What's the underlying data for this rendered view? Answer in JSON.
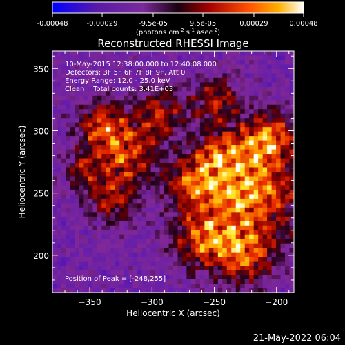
{
  "colorbar": {
    "tick_labels": [
      "-0.00048",
      "-0.00029",
      "-9.5e-05",
      "9.5e-05",
      "0.00029",
      "0.00048"
    ],
    "tick_values": [
      -0.00048,
      -0.00029,
      -9.5e-05,
      9.5e-05,
      0.00029,
      0.00048
    ],
    "range": [
      -0.00048,
      0.00048
    ],
    "units": "(photons cm",
    "units_sup1": "-2",
    "units_mid": " s",
    "units_sup2": "-1",
    "units_end": " asec",
    "units_sup3": "-2",
    "units_close": ")"
  },
  "chart_data": {
    "type": "heatmap",
    "title": "Reconstructed RHESSI Image",
    "xlabel": "Heliocentric X (arcsec)",
    "ylabel": "Heliocentric Y (arcsec)",
    "xlim": [
      -380,
      -186
    ],
    "ylim": [
      170,
      364
    ],
    "x_ticks": [
      -350,
      -300,
      -250,
      -200
    ],
    "y_ticks": [
      200,
      250,
      300,
      350
    ],
    "annotations": {
      "time": "10-May-2015 12:38:00.000 to 12:40:08.000",
      "detectors": "Detectors: 3F 5F 6F 7F 8F 9F, Att 0",
      "energy": "Energy Range: 12.0 - 25.0 keV",
      "method": "Clean    Total counts: 3.41E+03",
      "peak": "Position of Peak = [-248,255]"
    },
    "peak": [
      -248,
      255
    ],
    "grid": false
  },
  "footer": {
    "date": "21-May-2022 06:04"
  },
  "colors": {
    "background": "#000000",
    "foreground": "#ffffff"
  }
}
